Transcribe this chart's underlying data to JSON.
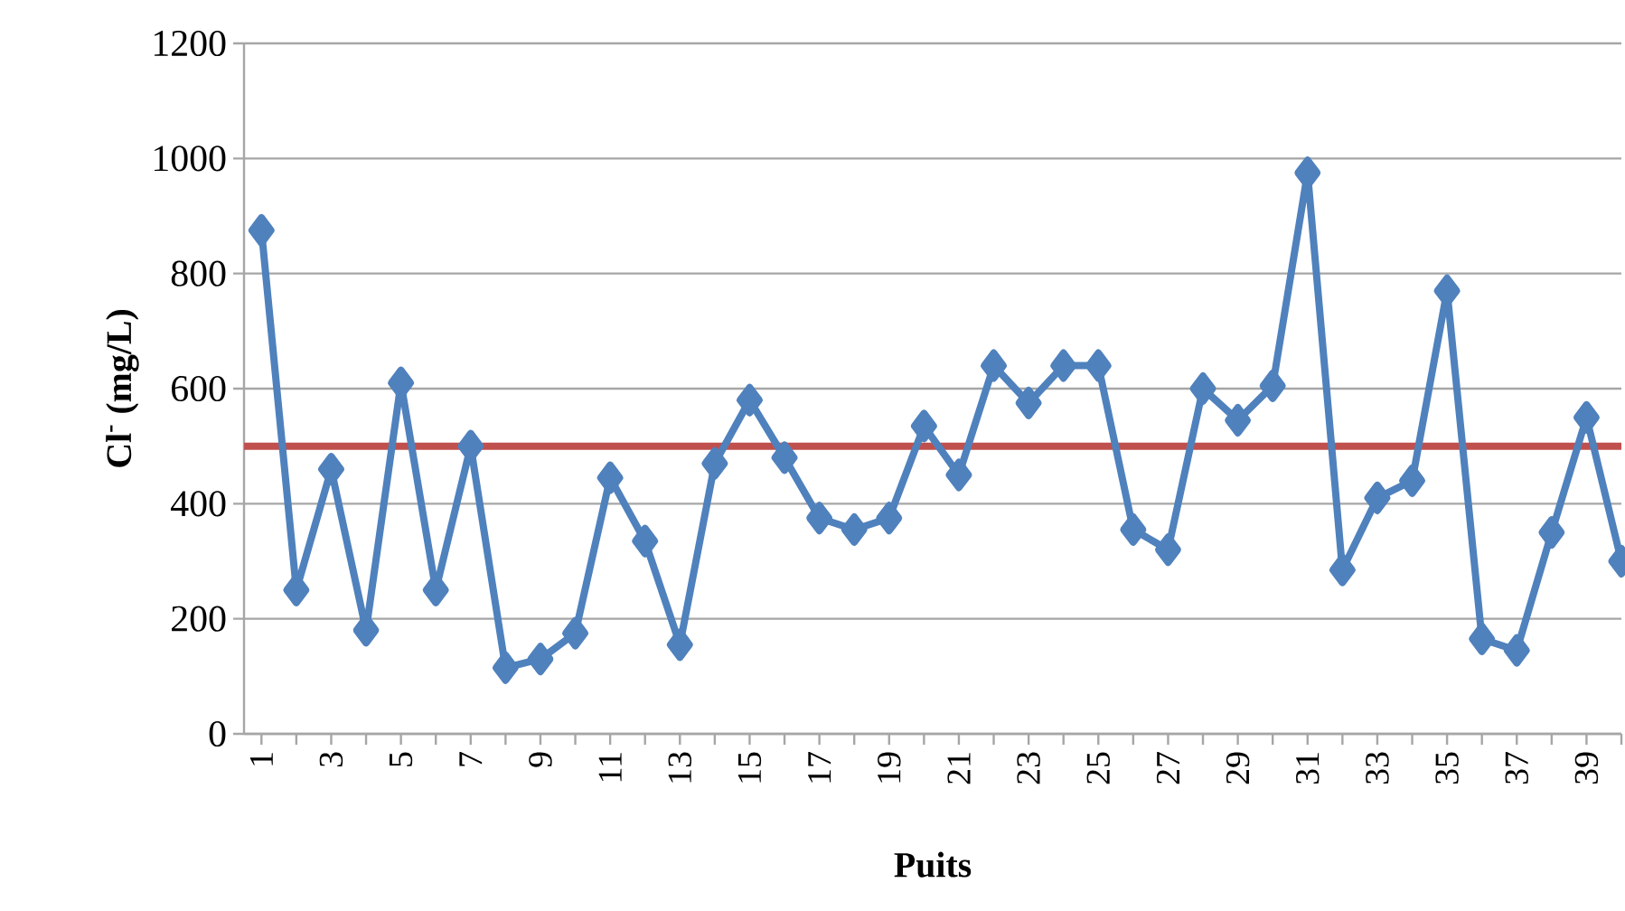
{
  "chart_data": {
    "type": "line",
    "xlabel": "Puits",
    "ylabel": "**Cl$^{-}$ (mg/L)**",
    "categories": [
      "1",
      null,
      "3",
      null,
      "5",
      null,
      "7",
      null,
      "9",
      null,
      "11",
      null,
      "13",
      null,
      "15",
      null,
      "17",
      null,
      "19",
      null,
      "21",
      null,
      "23",
      null,
      "25",
      null,
      "27",
      null,
      "29",
      null,
      "31",
      null,
      "33",
      null,
      "35",
      null,
      "37",
      null,
      "39",
      null
    ],
    "series": [
      {
        "color": "#4f81bd",
        "values": [
          875,
          250,
          460,
          180,
          610,
          250,
          500,
          115,
          130,
          175,
          445,
          335,
          155,
          470,
          580,
          480,
          375,
          355,
          375,
          535,
          450,
          640,
          575,
          640,
          640,
          355,
          320,
          600,
          545,
          605,
          975,
          285,
          410,
          440,
          770,
          165,
          145,
          350,
          550,
          300
        ]
      }
    ],
    "ylim": [
      0,
      1200
    ],
    "yticks": [
      0,
      200,
      400,
      600,
      800,
      1000,
      1200
    ],
    "grid": "y",
    "marker": "diamond",
    "line_style": "solid",
    "ref_lines": [
      {
        "axis": "y",
        "value": 500,
        "color": "#c0504d"
      }
    ]
  }
}
